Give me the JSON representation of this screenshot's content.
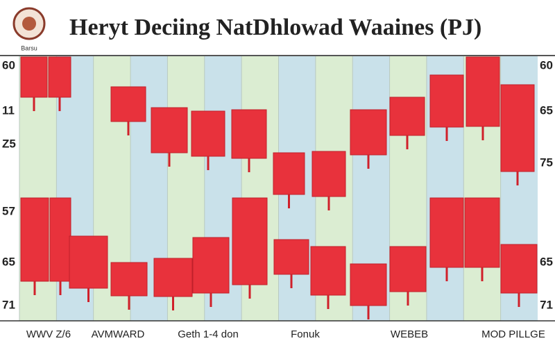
{
  "header": {
    "title": "Heryt Deciing NatDhlowad Waaines (PJ)",
    "logo_caption": "Barsu"
  },
  "left_axis": [
    "60",
    "11",
    "Z5",
    "57",
    "65",
    "71"
  ],
  "right_axis": [
    "60",
    "65",
    "75",
    "65",
    "71"
  ],
  "bottom_labels": [
    "WWV Z/6",
    "AVMWARD",
    "Geth 1-4 don",
    "Fonuk",
    "WEBEB",
    "MOD PILLGE"
  ]
}
